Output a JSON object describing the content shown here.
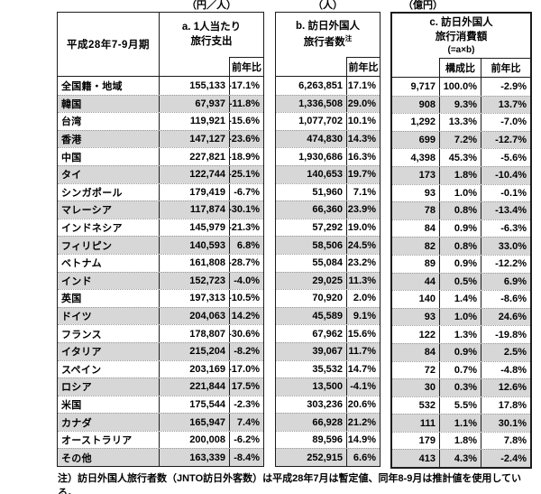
{
  "units": {
    "a": "（円／人）",
    "b": "（人）",
    "c": "（億円）"
  },
  "header": {
    "period": "平成28年7-9月期",
    "col_a": {
      "title_line1": "a. 1人当たり",
      "title_line2": "旅行支出",
      "sub_yoy": "前年比"
    },
    "col_b": {
      "title_line1": "b. 訪日外国人",
      "title_line2": "旅行者数",
      "note_sup": "注",
      "sub_yoy": "前年比"
    },
    "col_c": {
      "title_line1": "c. 訪日外国人",
      "title_line2": "旅行消費額",
      "title_line3": "(=a×b)",
      "sub_share": "構成比",
      "sub_yoy": "前年比"
    }
  },
  "rows": [
    {
      "label": "全国籍・地域",
      "a": "155,133",
      "a_yoy": "-17.1%",
      "b": "6,263,851",
      "b_yoy": "17.1%",
      "c": "9,717",
      "c_share": "100.0%",
      "c_yoy": "-2.9%",
      "shaded": false
    },
    {
      "label": "韓国",
      "a": "67,937",
      "a_yoy": "-11.8%",
      "b": "1,336,508",
      "b_yoy": "29.0%",
      "c": "908",
      "c_share": "9.3%",
      "c_yoy": "13.7%",
      "shaded": true
    },
    {
      "label": "台湾",
      "a": "119,921",
      "a_yoy": "-15.6%",
      "b": "1,077,702",
      "b_yoy": "10.1%",
      "c": "1,292",
      "c_share": "13.3%",
      "c_yoy": "-7.0%",
      "shaded": false
    },
    {
      "label": "香港",
      "a": "147,127",
      "a_yoy": "-23.6%",
      "b": "474,830",
      "b_yoy": "14.3%",
      "c": "699",
      "c_share": "7.2%",
      "c_yoy": "-12.7%",
      "shaded": true
    },
    {
      "label": "中国",
      "a": "227,821",
      "a_yoy": "-18.9%",
      "b": "1,930,686",
      "b_yoy": "16.3%",
      "c": "4,398",
      "c_share": "45.3%",
      "c_yoy": "-5.6%",
      "shaded": false
    },
    {
      "label": "タイ",
      "a": "122,744",
      "a_yoy": "-25.1%",
      "b": "140,653",
      "b_yoy": "19.7%",
      "c": "173",
      "c_share": "1.8%",
      "c_yoy": "-10.4%",
      "shaded": true
    },
    {
      "label": "シンガポール",
      "a": "179,419",
      "a_yoy": "-6.7%",
      "b": "51,960",
      "b_yoy": "7.1%",
      "c": "93",
      "c_share": "1.0%",
      "c_yoy": "-0.1%",
      "shaded": false
    },
    {
      "label": "マレーシア",
      "a": "117,874",
      "a_yoy": "-30.1%",
      "b": "66,360",
      "b_yoy": "23.9%",
      "c": "78",
      "c_share": "0.8%",
      "c_yoy": "-13.4%",
      "shaded": true
    },
    {
      "label": "インドネシア",
      "a": "145,979",
      "a_yoy": "-21.3%",
      "b": "57,292",
      "b_yoy": "19.0%",
      "c": "84",
      "c_share": "0.9%",
      "c_yoy": "-6.3%",
      "shaded": false
    },
    {
      "label": "フィリピン",
      "a": "140,593",
      "a_yoy": "6.8%",
      "b": "58,506",
      "b_yoy": "24.5%",
      "c": "82",
      "c_share": "0.8%",
      "c_yoy": "33.0%",
      "shaded": true
    },
    {
      "label": "ベトナム",
      "a": "161,808",
      "a_yoy": "-28.7%",
      "b": "55,084",
      "b_yoy": "23.2%",
      "c": "89",
      "c_share": "0.9%",
      "c_yoy": "-12.2%",
      "shaded": false
    },
    {
      "label": "インド",
      "a": "152,723",
      "a_yoy": "-4.0%",
      "b": "29,025",
      "b_yoy": "11.3%",
      "c": "44",
      "c_share": "0.5%",
      "c_yoy": "6.9%",
      "shaded": true
    },
    {
      "label": "英国",
      "a": "197,313",
      "a_yoy": "-10.5%",
      "b": "70,920",
      "b_yoy": "2.0%",
      "c": "140",
      "c_share": "1.4%",
      "c_yoy": "-8.6%",
      "shaded": false
    },
    {
      "label": "ドイツ",
      "a": "204,063",
      "a_yoy": "14.2%",
      "b": "45,589",
      "b_yoy": "9.1%",
      "c": "93",
      "c_share": "1.0%",
      "c_yoy": "24.6%",
      "shaded": true
    },
    {
      "label": "フランス",
      "a": "178,807",
      "a_yoy": "-30.6%",
      "b": "67,962",
      "b_yoy": "15.6%",
      "c": "122",
      "c_share": "1.3%",
      "c_yoy": "-19.8%",
      "shaded": false
    },
    {
      "label": "イタリア",
      "a": "215,204",
      "a_yoy": "-8.2%",
      "b": "39,067",
      "b_yoy": "11.7%",
      "c": "84",
      "c_share": "0.9%",
      "c_yoy": "2.5%",
      "shaded": true
    },
    {
      "label": "スペイン",
      "a": "203,169",
      "a_yoy": "-17.0%",
      "b": "35,532",
      "b_yoy": "14.7%",
      "c": "72",
      "c_share": "0.7%",
      "c_yoy": "-4.8%",
      "shaded": false
    },
    {
      "label": "ロシア",
      "a": "221,844",
      "a_yoy": "17.5%",
      "b": "13,500",
      "b_yoy": "-4.1%",
      "c": "30",
      "c_share": "0.3%",
      "c_yoy": "12.6%",
      "shaded": true
    },
    {
      "label": "米国",
      "a": "175,544",
      "a_yoy": "-2.3%",
      "b": "303,236",
      "b_yoy": "20.6%",
      "c": "532",
      "c_share": "5.5%",
      "c_yoy": "17.8%",
      "shaded": false
    },
    {
      "label": "カナダ",
      "a": "165,947",
      "a_yoy": "7.4%",
      "b": "66,928",
      "b_yoy": "21.2%",
      "c": "111",
      "c_share": "1.1%",
      "c_yoy": "30.1%",
      "shaded": true
    },
    {
      "label": "オーストラリア",
      "a": "200,008",
      "a_yoy": "-6.2%",
      "b": "89,596",
      "b_yoy": "14.9%",
      "c": "179",
      "c_share": "1.8%",
      "c_yoy": "7.8%",
      "shaded": false
    },
    {
      "label": "その他",
      "a": "163,339",
      "a_yoy": "-8.4%",
      "b": "252,915",
      "b_yoy": "6.6%",
      "c": "413",
      "c_share": "4.3%",
      "c_yoy": "-2.4%",
      "shaded": true
    }
  ],
  "footnote": "注）訪日外国人旅行者数（JNTO訪日外客数）は平成28年7月は暫定値、同年8-9月は推計値を使用している。"
}
